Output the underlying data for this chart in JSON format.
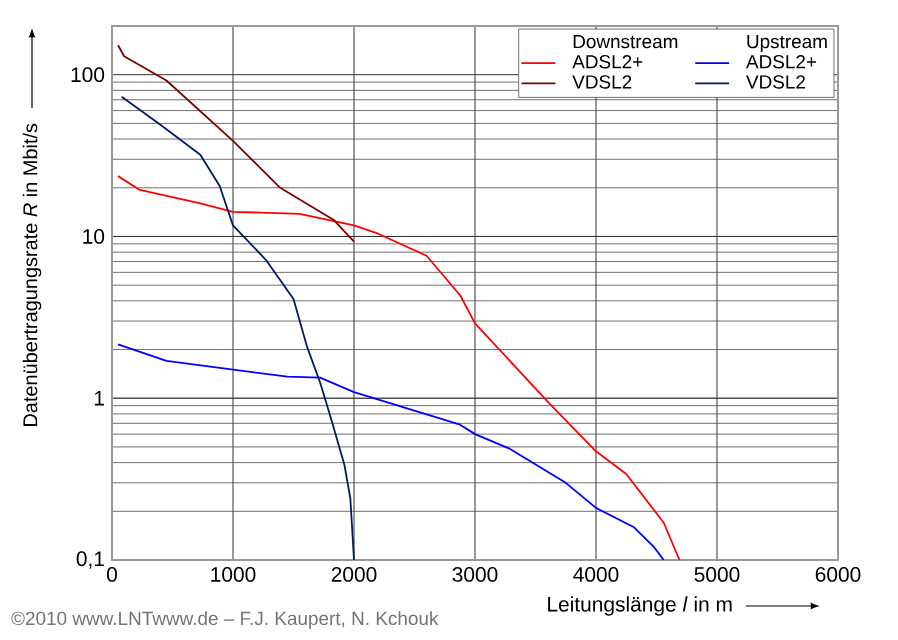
{
  "chart_data": {
    "type": "line",
    "xlabel": "Leitungslänge *l* in m",
    "ylabel": "Datenübertragungsrate *R* in Mbit/s",
    "log": "y",
    "grid": true,
    "legend": "top right",
    "marker": "none",
    "line_style": "solid",
    "xlim": [
      0,
      6000
    ],
    "xticks": [
      0,
      1000,
      2000,
      3000,
      4000,
      5000,
      6000
    ],
    "ylim": [
      0.1,
      200
    ],
    "yticks": [
      {
        "value": 0.1,
        "label": "0,1"
      },
      1,
      10,
      100
    ],
    "annotations": [
      "Downstream",
      "Upstream",
      "©2010 www.LNTwww.de –  F.J. Kaupert, N. Kchouk"
    ],
    "series": [
      {
        "name": "ADSL2+",
        "color": "#ff0000",
        "x": [
          50,
          230,
          730,
          1000,
          1550,
          2000,
          2200,
          2600,
          2880,
          3000,
          3620,
          4000,
          4250,
          4560,
          4690
        ],
        "values": [
          23.6,
          19.4,
          16,
          14.2,
          13.8,
          11.7,
          10.4,
          7.6,
          4.3,
          2.9,
          0.92,
          0.47,
          0.34,
          0.17,
          0.1
        ]
      },
      {
        "name": "VDSL2",
        "color": "#800000",
        "x": [
          50,
          100,
          450,
          1000,
          1390,
          1830,
          2000
        ],
        "values": [
          152,
          130,
          92,
          39,
          20,
          12.7,
          9.3
        ]
      },
      {
        "name": "ADSL2+",
        "color": "#0000ff",
        "x": [
          50,
          450,
          1450,
          1720,
          2000,
          2870,
          3000,
          3280,
          3750,
          4000,
          4310,
          4480,
          4560
        ],
        "values": [
          2.15,
          1.7,
          1.36,
          1.34,
          1.09,
          0.69,
          0.6,
          0.49,
          0.3,
          0.21,
          0.16,
          0.12,
          0.1
        ]
      },
      {
        "name": "VDSL2",
        "color": "#001a66",
        "x": [
          80,
          400,
          730,
          890,
          1000,
          1270,
          1500,
          1610,
          1720,
          1810,
          1920,
          1970,
          2000
        ],
        "values": [
          73,
          49,
          32,
          20.5,
          11.7,
          7.2,
          4.1,
          2.1,
          1.25,
          0.75,
          0.39,
          0.24,
          0.1
        ]
      }
    ]
  }
}
